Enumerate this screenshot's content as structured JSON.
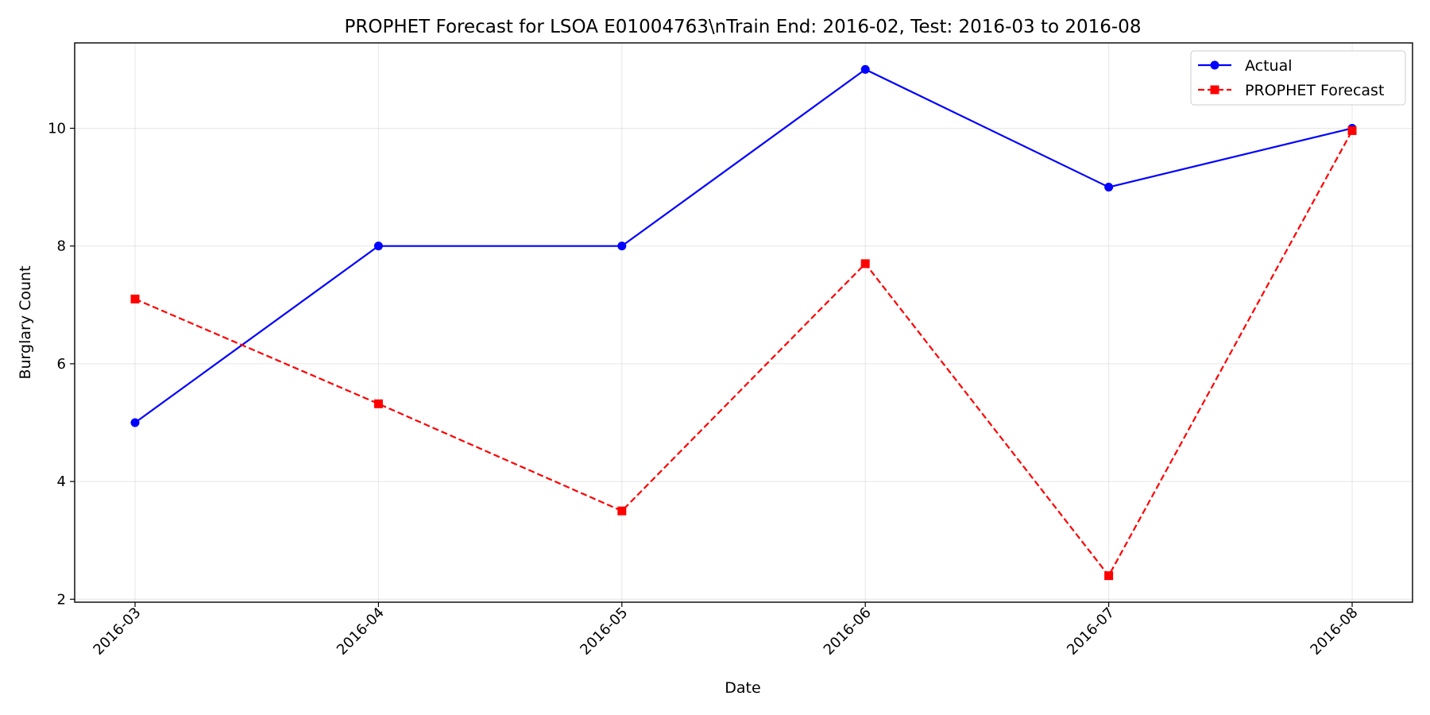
{
  "chart_data": {
    "type": "line",
    "title": "PROPHET Forecast for LSOA E01004763\\nTrain End: 2016-02, Test: 2016-03 to 2016-08",
    "xlabel": "Date",
    "ylabel": "Burglary Count",
    "categories": [
      "2016-03",
      "2016-04",
      "2016-05",
      "2016-06",
      "2016-07",
      "2016-08"
    ],
    "ylim": [
      1.95,
      11.45
    ],
    "yticks": [
      2,
      4,
      6,
      8,
      10
    ],
    "grid": true,
    "legend_position": "top-right",
    "series": [
      {
        "name": "Actual",
        "values": [
          5,
          8,
          8,
          11,
          9,
          10
        ],
        "color": "#0000ff",
        "line_style": "solid",
        "marker": "circle"
      },
      {
        "name": "PROPHET Forecast",
        "values": [
          7.1,
          5.32,
          3.5,
          7.7,
          2.4,
          9.96
        ],
        "color": "#ff0000",
        "line_style": "dashed",
        "marker": "square"
      }
    ]
  }
}
